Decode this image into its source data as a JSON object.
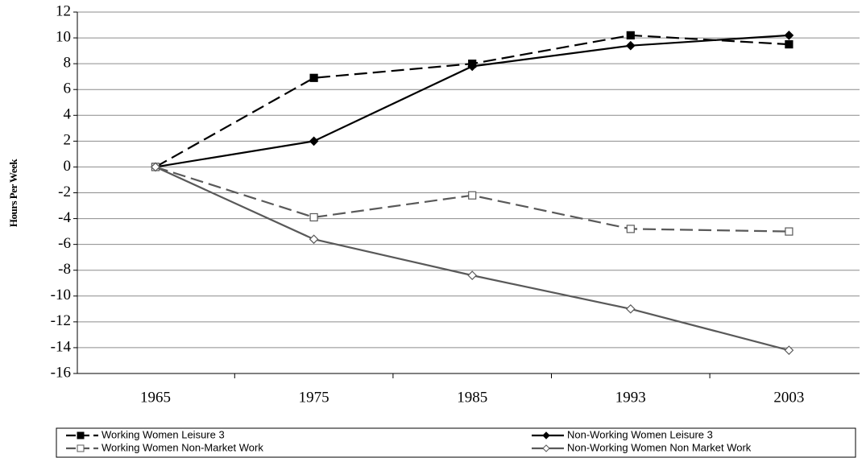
{
  "chart_data": {
    "type": "line",
    "y_label": "Hours Per Week",
    "categories": [
      "1965",
      "1975",
      "1985",
      "1993",
      "2003"
    ],
    "series": [
      {
        "name": "Working Women Leisure 3",
        "color": "#000000",
        "line_style": "dashed",
        "marker": "square",
        "marker_fill": "filled",
        "values": [
          0,
          6.9,
          8.0,
          10.2,
          9.5
        ]
      },
      {
        "name": "Non-Working Women Leisure 3",
        "color": "#000000",
        "line_style": "solid",
        "marker": "diamond",
        "marker_fill": "filled",
        "values": [
          0,
          2.0,
          7.8,
          9.4,
          10.2
        ]
      },
      {
        "name": "Working Women Non-Market Work",
        "color": "#595959",
        "line_style": "dashed",
        "marker": "square",
        "marker_fill": "open",
        "values": [
          0,
          -3.9,
          -2.2,
          -4.8,
          -5.0
        ]
      },
      {
        "name": "Non-Working Women Non Market Work",
        "color": "#595959",
        "line_style": "solid",
        "marker": "diamond",
        "marker_fill": "open",
        "values": [
          0,
          -5.6,
          -8.4,
          -11.0,
          -14.2
        ]
      }
    ],
    "ylim": [
      -16,
      12
    ],
    "yticks": [
      -16,
      -14,
      -12,
      -10,
      -8,
      -6,
      -4,
      -2,
      0,
      2,
      4,
      6,
      8,
      10,
      12
    ],
    "grid": true,
    "legend": "bottom"
  }
}
